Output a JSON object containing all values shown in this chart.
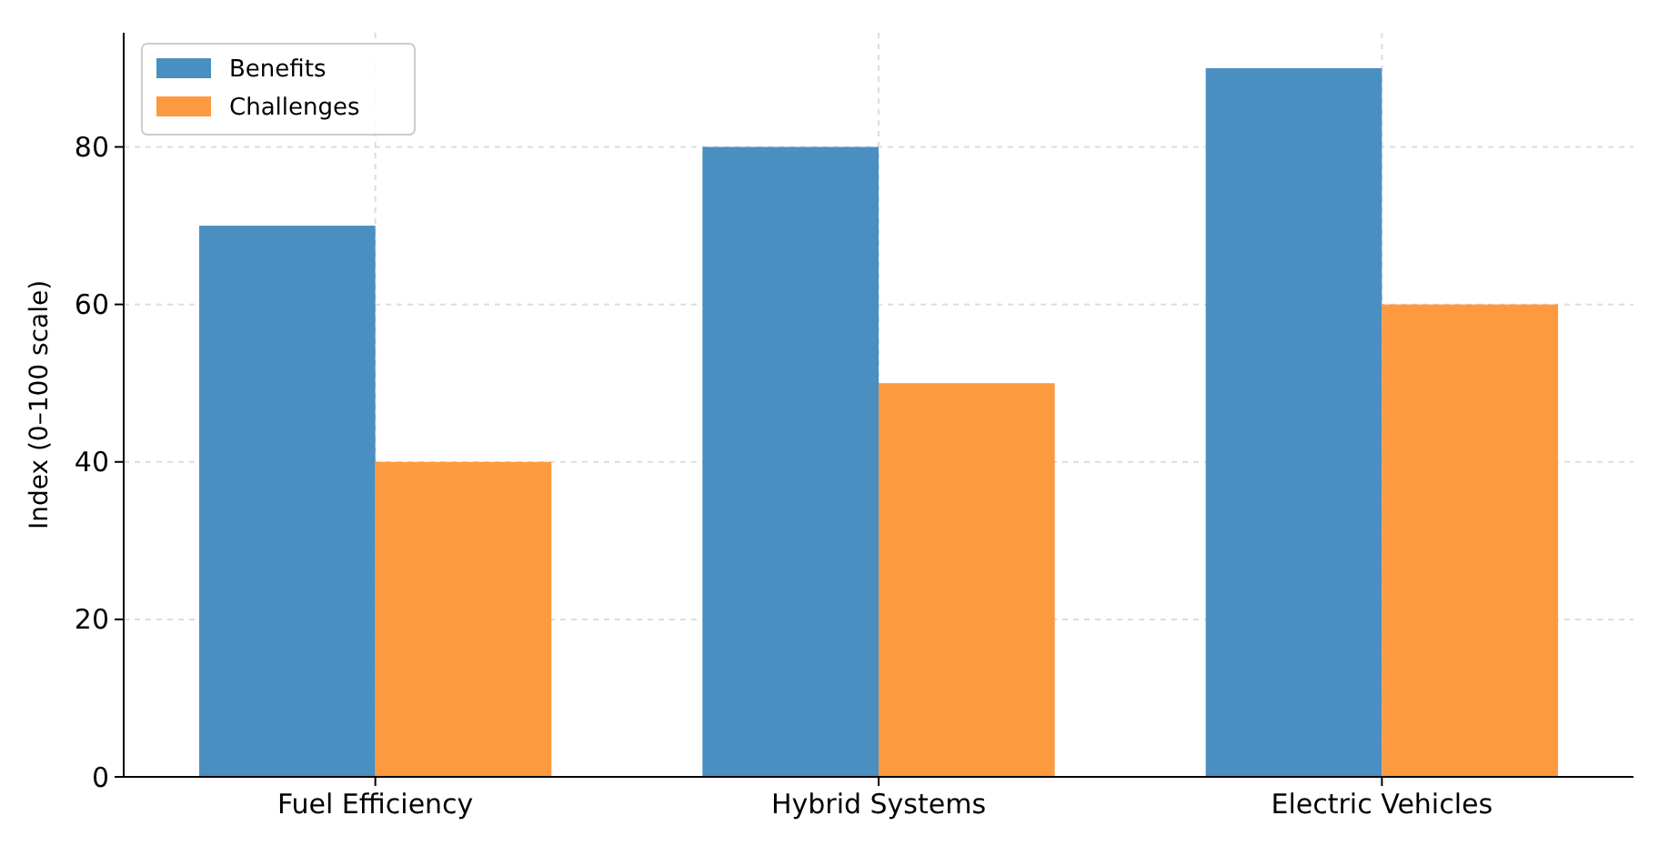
{
  "chart_data": {
    "type": "bar",
    "ylabel": "Index (0–100 scale)",
    "categories": [
      "Fuel Efficiency",
      "Hybrid Systems",
      "Electric Vehicles"
    ],
    "series": [
      {
        "name": "Benefits",
        "color": "#4a8fc2",
        "values": [
          70,
          80,
          90
        ]
      },
      {
        "name": "Challenges",
        "color": "#fd9a40",
        "values": [
          40,
          50,
          60
        ]
      }
    ],
    "ylim": [
      0,
      94.5
    ],
    "yticks": [
      0,
      20,
      40,
      60,
      80
    ],
    "grid": true,
    "legend": "top left"
  }
}
